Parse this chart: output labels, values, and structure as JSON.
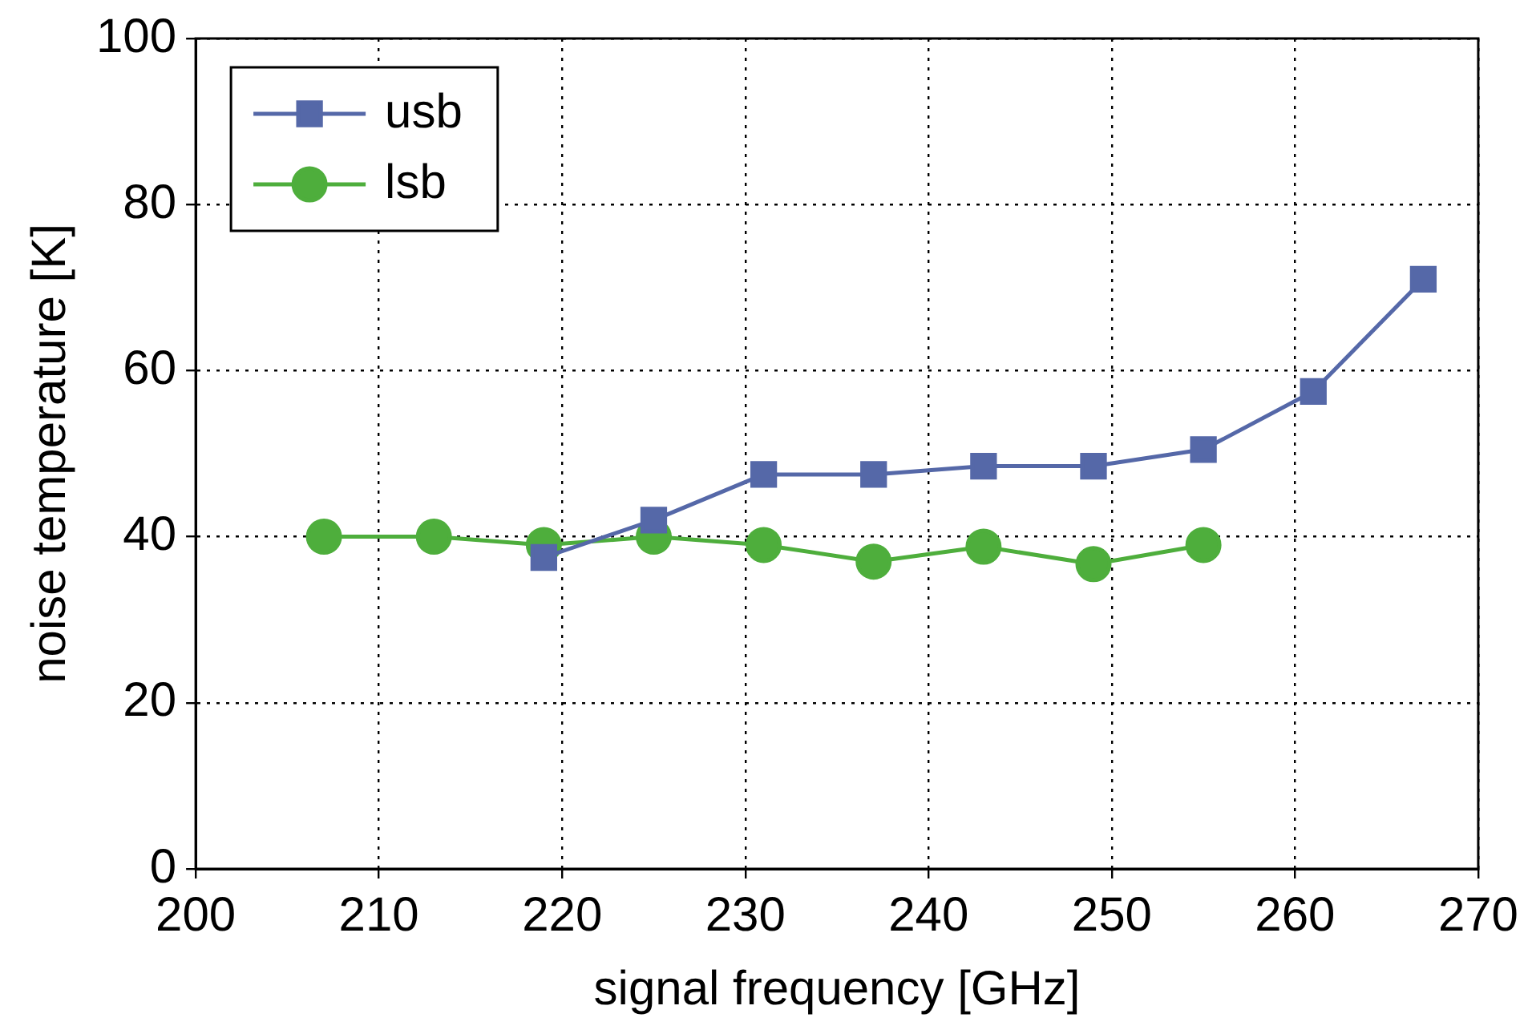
{
  "chart_data": {
    "type": "line",
    "xlabel": "signal frequency [GHz]",
    "ylabel": "noise temperature [K]",
    "xlim": [
      200,
      270
    ],
    "xticks": [
      200,
      210,
      220,
      230,
      240,
      250,
      260,
      270
    ],
    "ylim": [
      0,
      100
    ],
    "yticks": [
      0,
      20,
      40,
      60,
      80,
      100
    ],
    "grid": true,
    "legend": "top left",
    "series": [
      {
        "name": "usb",
        "color": "#5568a8",
        "marker": "square",
        "x": [
          219,
          225,
          231,
          237,
          243,
          249,
          255,
          261,
          267
        ],
        "values": [
          37.5,
          42,
          47.5,
          47.5,
          48.5,
          48.5,
          50.5,
          57.5,
          71
        ]
      },
      {
        "name": "lsb",
        "color": "#4eae3c",
        "marker": "circle",
        "x": [
          207,
          213,
          219,
          225,
          231,
          237,
          243,
          249,
          255
        ],
        "values": [
          40,
          40,
          39,
          40,
          39,
          37,
          38.8,
          36.7,
          39
        ]
      }
    ]
  }
}
